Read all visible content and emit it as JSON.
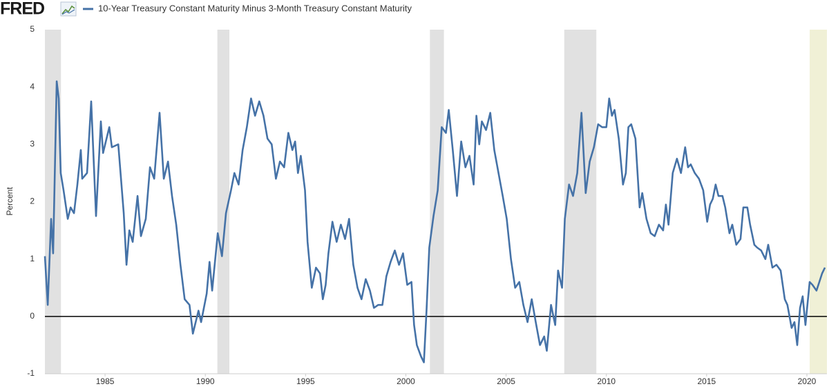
{
  "logo": "FRED",
  "chart_data": {
    "type": "line",
    "y_label": "Percent",
    "xlim": [
      1982,
      2021
    ],
    "xticks": [
      1985,
      1990,
      1995,
      2000,
      2005,
      2010,
      2015,
      2020
    ],
    "ylim": [
      -1,
      5
    ],
    "yticks": [
      -1,
      0,
      1,
      2,
      3,
      4,
      5
    ],
    "zero_line": true,
    "grid": false,
    "shaded_periods": [
      {
        "start": 1982.0,
        "end": 1982.8,
        "color": "#e1e1e1"
      },
      {
        "start": 1990.6,
        "end": 1991.2,
        "color": "#e1e1e1"
      },
      {
        "start": 2001.2,
        "end": 2001.9,
        "color": "#e1e1e1"
      },
      {
        "start": 2007.9,
        "end": 2009.5,
        "color": "#e1e1e1"
      },
      {
        "start": 2020.14,
        "end": 2021.0,
        "color": "#f0f0d6"
      }
    ],
    "x": [
      1982.0,
      1982.14,
      1982.31,
      1982.41,
      1982.59,
      1982.69,
      1982.79,
      1982.93,
      1983.14,
      1983.28,
      1983.45,
      1983.62,
      1983.79,
      1983.86,
      1984.1,
      1984.31,
      1984.55,
      1984.79,
      1984.9,
      1985.21,
      1985.34,
      1985.66,
      1985.93,
      1986.07,
      1986.21,
      1986.38,
      1986.62,
      1986.79,
      1987.03,
      1987.24,
      1987.45,
      1987.72,
      1987.93,
      1988.14,
      1988.34,
      1988.55,
      1988.76,
      1988.97,
      1989.21,
      1989.38,
      1989.66,
      1989.79,
      1990.07,
      1990.21,
      1990.34,
      1990.62,
      1990.83,
      1991.03,
      1991.28,
      1991.45,
      1991.66,
      1991.86,
      1992.07,
      1992.28,
      1992.48,
      1992.69,
      1992.9,
      1993.1,
      1993.31,
      1993.52,
      1993.72,
      1993.93,
      1994.14,
      1994.34,
      1994.48,
      1994.62,
      1994.76,
      1994.97,
      1995.1,
      1995.31,
      1995.52,
      1995.72,
      1995.86,
      1996.0,
      1996.14,
      1996.34,
      1996.55,
      1996.76,
      1996.97,
      1997.17,
      1997.38,
      1997.59,
      1997.79,
      1998.0,
      1998.21,
      1998.41,
      1998.62,
      1998.83,
      1999.03,
      1999.24,
      1999.45,
      1999.66,
      1999.86,
      2000.07,
      2000.28,
      2000.41,
      2000.55,
      2000.76,
      2000.9,
      2001.03,
      2001.17,
      2001.38,
      2001.59,
      2001.79,
      2002.0,
      2002.14,
      2002.34,
      2002.55,
      2002.76,
      2002.97,
      2003.17,
      2003.38,
      2003.52,
      2003.66,
      2003.79,
      2004.0,
      2004.21,
      2004.41,
      2004.62,
      2004.83,
      2005.03,
      2005.24,
      2005.45,
      2005.66,
      2005.86,
      2006.07,
      2006.28,
      2006.48,
      2006.69,
      2006.9,
      2007.03,
      2007.24,
      2007.45,
      2007.59,
      2007.79,
      2007.93,
      2008.14,
      2008.34,
      2008.55,
      2008.76,
      2008.97,
      2009.17,
      2009.38,
      2009.59,
      2009.79,
      2010.0,
      2010.14,
      2010.28,
      2010.41,
      2010.62,
      2010.83,
      2010.97,
      2011.1,
      2011.24,
      2011.45,
      2011.66,
      2011.79,
      2012.0,
      2012.21,
      2012.41,
      2012.62,
      2012.83,
      2012.97,
      2013.1,
      2013.31,
      2013.52,
      2013.72,
      2013.93,
      2014.07,
      2014.21,
      2014.41,
      2014.62,
      2014.83,
      2015.03,
      2015.17,
      2015.31,
      2015.45,
      2015.59,
      2015.79,
      2015.93,
      2016.14,
      2016.28,
      2016.48,
      2016.69,
      2016.83,
      2017.03,
      2017.17,
      2017.38,
      2017.52,
      2017.72,
      2017.93,
      2018.07,
      2018.28,
      2018.48,
      2018.69,
      2018.9,
      2019.03,
      2019.24,
      2019.38,
      2019.52,
      2019.66,
      2019.79,
      2019.93,
      2020.14,
      2020.28,
      2020.48,
      2020.62,
      2020.76,
      2020.9
    ],
    "series": [
      {
        "name": "10-Year Treasury Constant Maturity Minus 3-Month Treasury Constant Maturity",
        "color": "#4572a7",
        "values": [
          1.05,
          0.2,
          1.7,
          1.1,
          4.1,
          3.8,
          2.5,
          2.2,
          1.7,
          1.9,
          1.8,
          2.3,
          2.9,
          2.4,
          2.5,
          3.75,
          1.75,
          3.4,
          2.85,
          3.3,
          2.95,
          3.0,
          1.8,
          0.9,
          1.5,
          1.3,
          2.1,
          1.4,
          1.7,
          2.6,
          2.4,
          3.55,
          2.4,
          2.7,
          2.1,
          1.6,
          0.9,
          0.3,
          0.2,
          -0.3,
          0.1,
          -0.1,
          0.4,
          0.95,
          0.45,
          1.45,
          1.05,
          1.8,
          2.2,
          2.5,
          2.3,
          2.9,
          3.3,
          3.8,
          3.5,
          3.75,
          3.5,
          3.1,
          3.0,
          2.4,
          2.7,
          2.6,
          3.2,
          2.9,
          3.05,
          2.5,
          2.8,
          2.2,
          1.3,
          0.5,
          0.85,
          0.75,
          0.3,
          0.55,
          1.1,
          1.65,
          1.3,
          1.6,
          1.35,
          1.7,
          0.9,
          0.5,
          0.3,
          0.65,
          0.45,
          0.15,
          0.2,
          0.2,
          0.7,
          0.95,
          1.15,
          0.9,
          1.1,
          0.55,
          0.6,
          -0.15,
          -0.5,
          -0.7,
          -0.8,
          0.1,
          1.2,
          1.75,
          2.2,
          3.3,
          3.2,
          3.6,
          2.9,
          2.1,
          3.05,
          2.6,
          2.8,
          2.3,
          3.5,
          3.0,
          3.4,
          3.25,
          3.55,
          2.9,
          2.5,
          2.1,
          1.7,
          1.0,
          0.5,
          0.6,
          0.2,
          -0.1,
          0.3,
          -0.1,
          -0.5,
          -0.35,
          -0.6,
          0.2,
          -0.15,
          0.8,
          0.5,
          1.7,
          2.3,
          2.1,
          2.5,
          3.55,
          2.15,
          2.7,
          2.95,
          3.35,
          3.3,
          3.3,
          3.8,
          3.5,
          3.6,
          3.1,
          2.3,
          2.5,
          3.3,
          3.35,
          3.1,
          1.9,
          2.15,
          1.7,
          1.45,
          1.4,
          1.6,
          1.5,
          1.95,
          1.6,
          2.5,
          2.75,
          2.5,
          2.95,
          2.6,
          2.65,
          2.5,
          2.4,
          2.2,
          1.65,
          1.95,
          2.05,
          2.3,
          2.1,
          2.1,
          1.9,
          1.45,
          1.6,
          1.25,
          1.35,
          1.9,
          1.9,
          1.6,
          1.25,
          1.2,
          1.15,
          1.0,
          1.25,
          0.85,
          0.9,
          0.8,
          0.3,
          0.2,
          -0.2,
          -0.1,
          -0.5,
          0.15,
          0.35,
          -0.15,
          0.6,
          0.55,
          0.45,
          0.6,
          0.75,
          0.85
        ]
      }
    ]
  }
}
